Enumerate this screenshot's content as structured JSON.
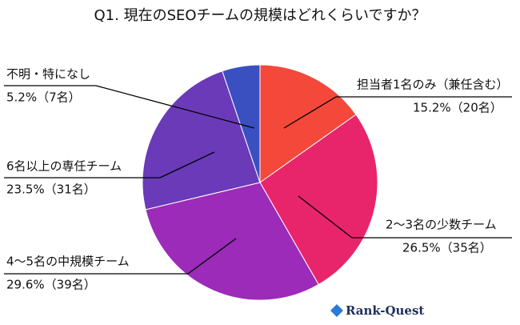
{
  "chart_data": {
    "type": "pie",
    "title": "Q1. 現在のSEOチームの規模はどれくらいですか？",
    "categories": [
      "担当者1名のみ（兼任含む）",
      "2〜3名の少数チーム",
      "4〜5名の中規模チーム",
      "6名以上の専任チーム",
      "不明・特になし"
    ],
    "values": [
      15.2,
      26.5,
      29.6,
      23.5,
      5.2
    ],
    "value_labels": [
      "15.2%（20名）",
      "26.5%（35名）",
      "29.6%（39名）",
      "23.5%（31名）",
      "5.2%（7名）"
    ],
    "colors": [
      "#f4483a",
      "#e8256a",
      "#9b2bb8",
      "#6a3ab8",
      "#3a4fc0"
    ],
    "logo": "Rank-Quest"
  }
}
